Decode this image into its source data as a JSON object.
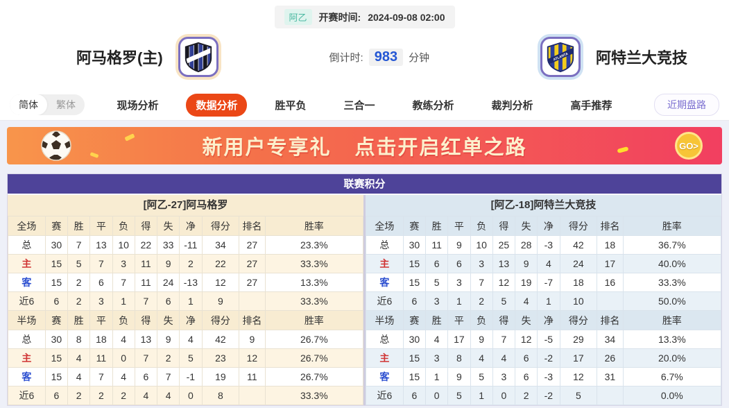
{
  "header": {
    "league_badge": "阿乙",
    "kickoff_label": "开赛时间:",
    "kickoff_time": "2024-09-08 02:00",
    "home_team": "阿马格罗(主)",
    "away_team": "阿特兰大竞技",
    "countdown": {
      "label": "倒计时:",
      "value": "983",
      "unit": "分钟"
    }
  },
  "nav": {
    "lang_toggle": [
      {
        "label": "简体",
        "active": true
      },
      {
        "label": "繁体",
        "active": false
      }
    ],
    "tabs": [
      {
        "label": "现场分析",
        "active": false
      },
      {
        "label": "数据分析",
        "active": true
      },
      {
        "label": "胜平负",
        "active": false
      },
      {
        "label": "三合一",
        "active": false
      },
      {
        "label": "教练分析",
        "active": false
      },
      {
        "label": "裁判分析",
        "active": false
      },
      {
        "label": "高手推荐",
        "active": false
      }
    ],
    "right_button": "近期盘路"
  },
  "banner": {
    "text_main": "新用户专享礼",
    "text_sub": "点击开启红单之路",
    "go_label": "GO>"
  },
  "standings": {
    "title": "联赛积分",
    "columns": [
      "赛",
      "胜",
      "平",
      "负",
      "得",
      "失",
      "净",
      "得分",
      "排名",
      "胜率"
    ],
    "left": {
      "team_header": "[阿乙-27]阿马格罗",
      "sections": [
        {
          "label": "全场",
          "rows": [
            {
              "label": "总",
              "type": "total",
              "values": [
                "30",
                "7",
                "13",
                "10",
                "22",
                "33",
                "-11",
                "34",
                "27",
                "23.3%"
              ]
            },
            {
              "label": "主",
              "type": "home",
              "values": [
                "15",
                "5",
                "7",
                "3",
                "11",
                "9",
                "2",
                "22",
                "27",
                "33.3%"
              ]
            },
            {
              "label": "客",
              "type": "away",
              "values": [
                "15",
                "2",
                "6",
                "7",
                "11",
                "24",
                "-13",
                "12",
                "27",
                "13.3%"
              ]
            },
            {
              "label": "近6",
              "type": "recent",
              "values": [
                "6",
                "2",
                "3",
                "1",
                "7",
                "6",
                "1",
                "9",
                "",
                "33.3%"
              ]
            }
          ]
        },
        {
          "label": "半场",
          "rows": [
            {
              "label": "总",
              "type": "total",
              "values": [
                "30",
                "8",
                "18",
                "4",
                "13",
                "9",
                "4",
                "42",
                "9",
                "26.7%"
              ]
            },
            {
              "label": "主",
              "type": "home",
              "values": [
                "15",
                "4",
                "11",
                "0",
                "7",
                "2",
                "5",
                "23",
                "12",
                "26.7%"
              ]
            },
            {
              "label": "客",
              "type": "away",
              "values": [
                "15",
                "4",
                "7",
                "4",
                "6",
                "7",
                "-1",
                "19",
                "11",
                "26.7%"
              ]
            },
            {
              "label": "近6",
              "type": "recent",
              "values": [
                "6",
                "2",
                "2",
                "2",
                "4",
                "4",
                "0",
                "8",
                "",
                "33.3%"
              ]
            }
          ]
        }
      ]
    },
    "right": {
      "team_header": "[阿乙-18]阿特兰大竞技",
      "sections": [
        {
          "label": "全场",
          "rows": [
            {
              "label": "总",
              "type": "total",
              "values": [
                "30",
                "11",
                "9",
                "10",
                "25",
                "28",
                "-3",
                "42",
                "18",
                "36.7%"
              ]
            },
            {
              "label": "主",
              "type": "home",
              "values": [
                "15",
                "6",
                "6",
                "3",
                "13",
                "9",
                "4",
                "24",
                "17",
                "40.0%"
              ]
            },
            {
              "label": "客",
              "type": "away",
              "values": [
                "15",
                "5",
                "3",
                "7",
                "12",
                "19",
                "-7",
                "18",
                "16",
                "33.3%"
              ]
            },
            {
              "label": "近6",
              "type": "recent",
              "values": [
                "6",
                "3",
                "1",
                "2",
                "5",
                "4",
                "1",
                "10",
                "",
                "50.0%"
              ]
            }
          ]
        },
        {
          "label": "半场",
          "rows": [
            {
              "label": "总",
              "type": "total",
              "values": [
                "30",
                "4",
                "17",
                "9",
                "7",
                "12",
                "-5",
                "29",
                "34",
                "13.3%"
              ]
            },
            {
              "label": "主",
              "type": "home",
              "values": [
                "15",
                "3",
                "8",
                "4",
                "4",
                "6",
                "-2",
                "17",
                "26",
                "20.0%"
              ]
            },
            {
              "label": "客",
              "type": "away",
              "values": [
                "15",
                "1",
                "9",
                "5",
                "3",
                "6",
                "-3",
                "12",
                "31",
                "6.7%"
              ]
            },
            {
              "label": "近6",
              "type": "recent",
              "values": [
                "6",
                "0",
                "5",
                "1",
                "0",
                "2",
                "-2",
                "5",
                "",
                "0.0%"
              ]
            }
          ]
        }
      ]
    }
  },
  "colors": {
    "accent_orange": "#eb4716",
    "table_header_purple": "#4e4399",
    "left_tint": "#f8ecd2",
    "right_tint": "#dbe7f0",
    "home_label_red": "#d03333",
    "away_label_blue": "#2c4fd0",
    "league_badge_teal": "#4ab8a1",
    "countdown_blue": "#2456d4",
    "banner_gradient_start": "#f8954b",
    "banner_gradient_end": "#f23f60",
    "go_gold": "#f7c437"
  }
}
